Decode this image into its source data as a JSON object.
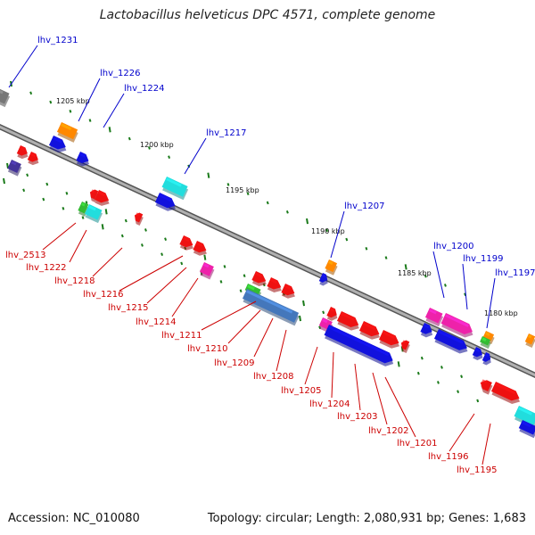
{
  "title": "Lactobacillus helveticus DPC 4571, complete genome",
  "footer": {
    "accession_text": "Accession: NC_010080",
    "summary_text": "Topology: circular; Length: 2,080,931 bp; Genes: 1,683"
  },
  "colors": {
    "backbone": "#888888",
    "tick": "#1a7a1a",
    "top_label": "#0000cc",
    "bottom_label": "#cc0000",
    "red_gene": "#ee1111",
    "blue_gene": "#1111dd",
    "cyan_gene": "#22dddd",
    "orange_gene": "#ff8800",
    "pink_gene": "#ee22aa",
    "green_gene": "#33bb33",
    "steel_gene": "#4477bb",
    "gray_gene": "#777777",
    "purple_gene": "#443399"
  },
  "kbp_labels": [
    "1205 kbp",
    "1200 kbp",
    "1195 kbp",
    "1190 kbp",
    "1185 kbp",
    "1180 kbp"
  ],
  "top_genes": [
    "lhv_1231",
    "lhv_1226",
    "lhv_1224",
    "lhv_1217",
    "lhv_1207",
    "lhv_1200",
    "lhv_1199",
    "lhv_1197"
  ],
  "bottom_genes": [
    "lhv_2513",
    "lhv_1222",
    "lhv_1218",
    "lhv_1216",
    "lhv_1215",
    "lhv_1214",
    "lhv_1211",
    "lhv_1210",
    "lhv_1209",
    "lhv_1208",
    "lhv_1205",
    "lhv_1204",
    "lhv_1203",
    "lhv_1202",
    "lhv_1201",
    "lhv_1196",
    "lhv_1195"
  ]
}
